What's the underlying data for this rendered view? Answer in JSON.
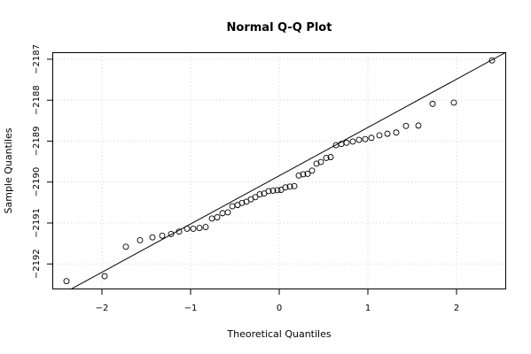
{
  "chart_data": {
    "type": "scatter",
    "title": "Normal Q-Q Plot",
    "xlabel": "Theoretical Quantiles",
    "ylabel": "Sample Quantiles",
    "xlim": [
      -2.55,
      2.55
    ],
    "ylim": [
      -2192.6,
      -2186.85
    ],
    "xticks": [
      -2,
      -1,
      0,
      1,
      2
    ],
    "yticks": [
      -2192,
      -2191,
      -2190,
      -2189,
      -2188,
      -2187
    ],
    "grid": true,
    "qq_line": {
      "x": [
        -2.6,
        2.6
      ],
      "y": [
        -2192.91,
        -2186.78
      ]
    },
    "points": [
      {
        "x": -2.4,
        "y": -2192.42
      },
      {
        "x": -1.97,
        "y": -2192.3
      },
      {
        "x": -1.73,
        "y": -2191.58
      },
      {
        "x": -1.57,
        "y": -2191.42
      },
      {
        "x": -1.43,
        "y": -2191.35
      },
      {
        "x": -1.32,
        "y": -2191.31
      },
      {
        "x": -1.22,
        "y": -2191.27
      },
      {
        "x": -1.13,
        "y": -2191.21
      },
      {
        "x": -1.04,
        "y": -2191.14
      },
      {
        "x": -0.97,
        "y": -2191.14
      },
      {
        "x": -0.9,
        "y": -2191.12
      },
      {
        "x": -0.83,
        "y": -2191.1
      },
      {
        "x": -0.76,
        "y": -2190.89
      },
      {
        "x": -0.7,
        "y": -2190.86
      },
      {
        "x": -0.64,
        "y": -2190.76
      },
      {
        "x": -0.58,
        "y": -2190.74
      },
      {
        "x": -0.53,
        "y": -2190.59
      },
      {
        "x": -0.47,
        "y": -2190.56
      },
      {
        "x": -0.42,
        "y": -2190.51
      },
      {
        "x": -0.37,
        "y": -2190.48
      },
      {
        "x": -0.32,
        "y": -2190.42
      },
      {
        "x": -0.27,
        "y": -2190.37
      },
      {
        "x": -0.22,
        "y": -2190.3
      },
      {
        "x": -0.17,
        "y": -2190.28
      },
      {
        "x": -0.12,
        "y": -2190.22
      },
      {
        "x": -0.07,
        "y": -2190.21
      },
      {
        "x": -0.02,
        "y": -2190.2
      },
      {
        "x": 0.02,
        "y": -2190.19
      },
      {
        "x": 0.07,
        "y": -2190.13
      },
      {
        "x": 0.12,
        "y": -2190.11
      },
      {
        "x": 0.17,
        "y": -2190.1
      },
      {
        "x": 0.22,
        "y": -2189.84
      },
      {
        "x": 0.27,
        "y": -2189.81
      },
      {
        "x": 0.32,
        "y": -2189.8
      },
      {
        "x": 0.37,
        "y": -2189.72
      },
      {
        "x": 0.42,
        "y": -2189.55
      },
      {
        "x": 0.47,
        "y": -2189.51
      },
      {
        "x": 0.53,
        "y": -2189.41
      },
      {
        "x": 0.58,
        "y": -2189.39
      },
      {
        "x": 0.64,
        "y": -2189.1
      },
      {
        "x": 0.7,
        "y": -2189.07
      },
      {
        "x": 0.76,
        "y": -2189.04
      },
      {
        "x": 0.83,
        "y": -2189.01
      },
      {
        "x": 0.9,
        "y": -2188.97
      },
      {
        "x": 0.97,
        "y": -2188.95
      },
      {
        "x": 1.04,
        "y": -2188.92
      },
      {
        "x": 1.13,
        "y": -2188.86
      },
      {
        "x": 1.22,
        "y": -2188.82
      },
      {
        "x": 1.32,
        "y": -2188.79
      },
      {
        "x": 1.43,
        "y": -2188.63
      },
      {
        "x": 1.57,
        "y": -2188.62
      },
      {
        "x": 1.73,
        "y": -2188.09
      },
      {
        "x": 1.97,
        "y": -2188.06
      },
      {
        "x": 2.4,
        "y": -2187.03
      }
    ]
  },
  "colors": {
    "point": "#000000",
    "line": "#000000",
    "grid": "#d3d3d3",
    "background": "#ffffff"
  }
}
